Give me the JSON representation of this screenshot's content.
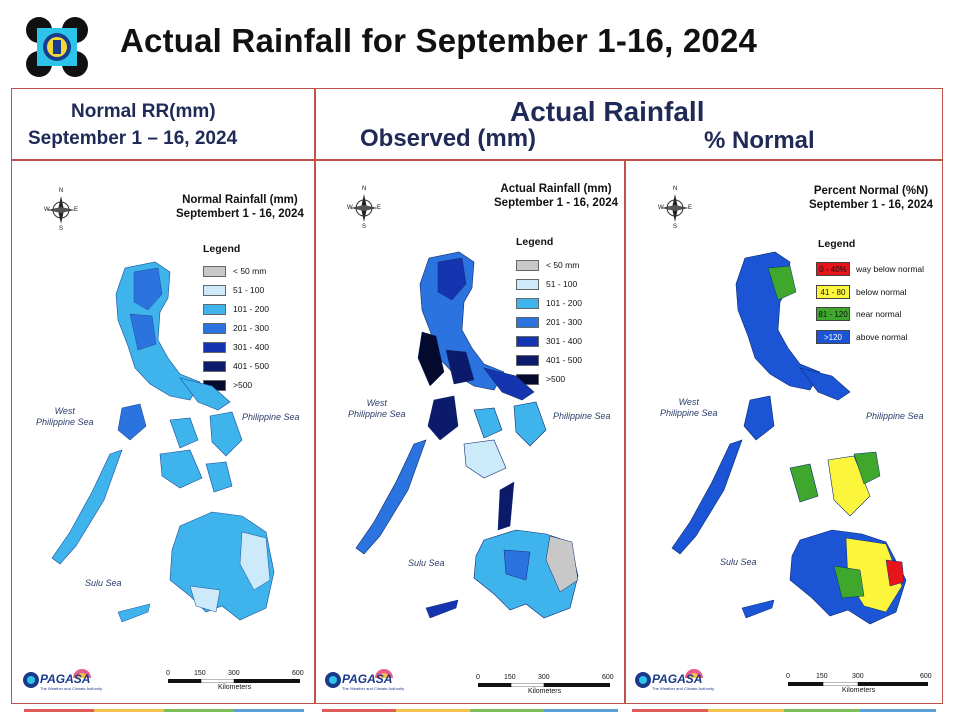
{
  "page": {
    "title": "Actual Rainfall for September 1-16, 2024"
  },
  "headers": {
    "normal_line1": "Normal RR(mm)",
    "normal_line2": "September 1 – 16, 2024",
    "actual": "Actual Rainfall",
    "observed": "Observed (mm)",
    "percent": "% Normal"
  },
  "maps": {
    "normal": {
      "title_line1": "Normal Rainfall (mm)",
      "title_line2": "Septembert 1 - 16, 2024",
      "legend_title": "Legend",
      "legend": [
        {
          "label": "< 50 mm",
          "color": "#c8c8c8"
        },
        {
          "label": "51 - 100",
          "color": "#cdeafa"
        },
        {
          "label": "101 - 200",
          "color": "#3fb4ec"
        },
        {
          "label": "201 - 300",
          "color": "#2b74e0"
        },
        {
          "label": "301 - 400",
          "color": "#1535b0"
        },
        {
          "label": "401 - 500",
          "color": "#0b1a6a"
        },
        {
          "label": ">500",
          "color": "#030a2e"
        }
      ],
      "sea_west_1": "West",
      "sea_west_2": "Philippine Sea",
      "sea_east": "Philippine Sea",
      "sea_sulu": "Sulu Sea"
    },
    "observed": {
      "title_line1": "Actual Rainfall (mm)",
      "title_line2": "September 1 - 16, 2024",
      "legend_title": "Legend",
      "legend": [
        {
          "label": "< 50 mm",
          "color": "#c8c8c8"
        },
        {
          "label": "51 - 100",
          "color": "#cdeafa"
        },
        {
          "label": "101 - 200",
          "color": "#3fb4ec"
        },
        {
          "label": "201 - 300",
          "color": "#2b74e0"
        },
        {
          "label": "301 - 400",
          "color": "#1535b0"
        },
        {
          "label": "401 - 500",
          "color": "#0b1a6a"
        },
        {
          "label": ">500",
          "color": "#030a2e"
        }
      ],
      "sea_west_1": "West",
      "sea_west_2": "Philippine Sea",
      "sea_east": "Philippine Sea",
      "sea_sulu": "Sulu Sea"
    },
    "percent": {
      "title_line1": "Percent Normal (%N)",
      "title_line2": "September 1 - 16, 2024",
      "legend_title": "Legend",
      "legend": [
        {
          "range": "0 - 40%",
          "label": "way below normal",
          "color": "#e8141b"
        },
        {
          "range": "41 - 80",
          "label": "below normal",
          "color": "#fbf63c"
        },
        {
          "range": "81 - 120",
          "label": "near normal",
          "color": "#3fa82c"
        },
        {
          "range": ">120",
          "label": "above normal",
          "color": "#1b55d6"
        }
      ],
      "sea_west_1": "West",
      "sea_west_2": "Philippine Sea",
      "sea_east": "Philippine Sea",
      "sea_sulu": "Sulu Sea"
    }
  },
  "scale": {
    "ticks": [
      "0",
      "150",
      "300",
      "600"
    ],
    "unit": "Kilometers"
  },
  "compass": {
    "n": "N",
    "s": "S",
    "e": "E",
    "w": "W"
  },
  "branding": {
    "pagasa": "PAGASA",
    "tagline": "The Weather and Climate Authority",
    "strip_colors": [
      "#e05a5a",
      "#f2c14e",
      "#7fbf5a",
      "#5aa0d8"
    ]
  }
}
